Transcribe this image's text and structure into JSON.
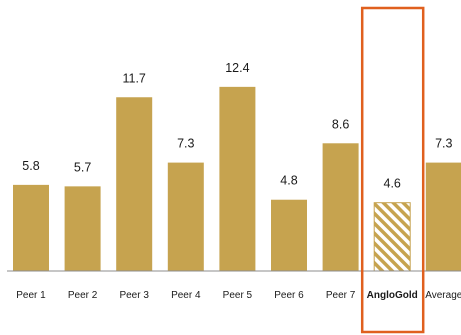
{
  "chart_data": {
    "type": "bar",
    "categories": [
      "Peer 1",
      "Peer 2",
      "Peer 3",
      "Peer 4",
      "Peer 5",
      "Peer 6",
      "Peer 7",
      "AngloGold",
      "Average"
    ],
    "values": [
      5.8,
      5.7,
      11.7,
      7.3,
      12.4,
      4.8,
      8.6,
      4.6,
      7.3
    ],
    "value_labels": [
      "5.8",
      "5.7",
      "11.7",
      "7.3",
      "12.4",
      "4.8",
      "8.6",
      "4.6",
      "7.3"
    ],
    "highlight_category": "AngloGold",
    "title": "",
    "xlabel": "",
    "ylabel": "",
    "ylim": [
      0,
      14.5
    ],
    "grid": false,
    "colors": {
      "bar": "#C6A34F",
      "highlight_hatch": "#C6A34F",
      "highlight_background": "#FFFFFF",
      "highlight_box": "#E0601E",
      "axis": "#8C8C8C"
    }
  }
}
